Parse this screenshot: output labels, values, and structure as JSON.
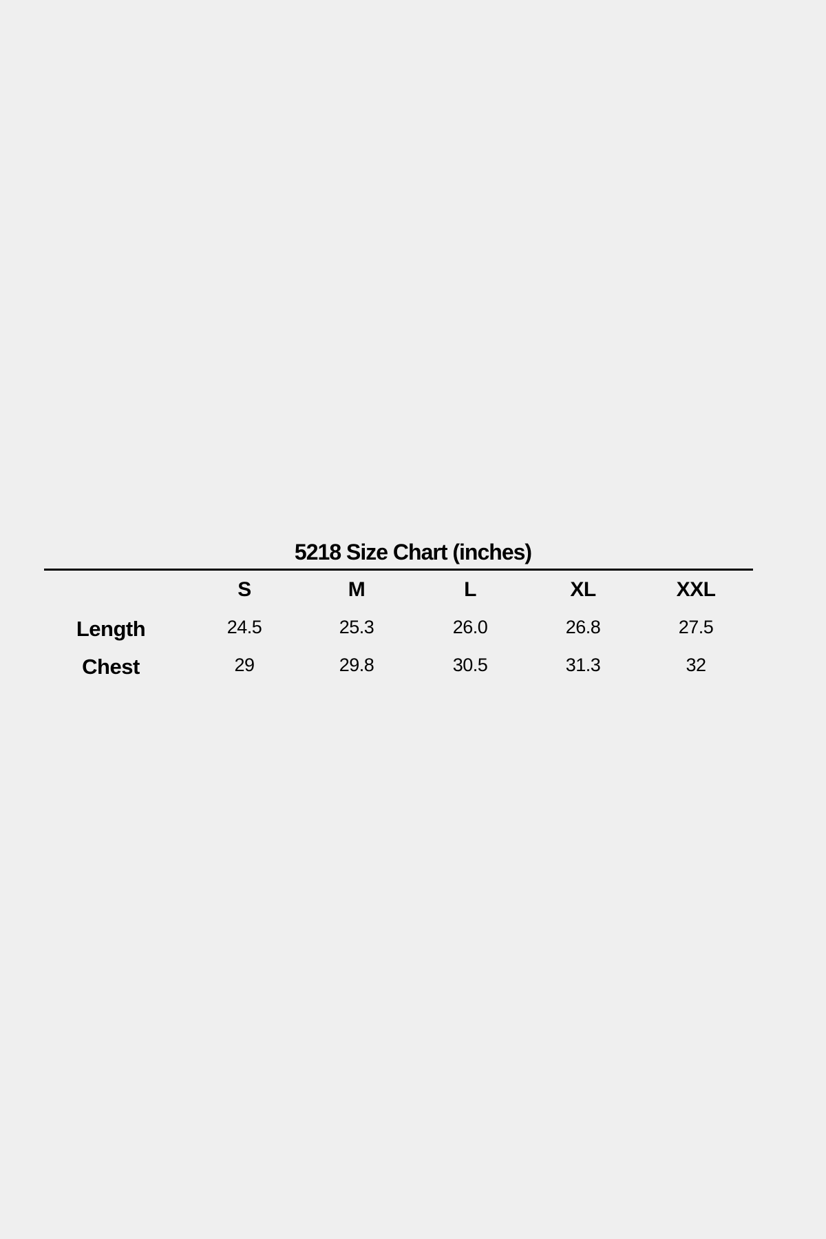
{
  "title": "5218 Size Chart (inches)",
  "columns": [
    "S",
    "M",
    "L",
    "XL",
    "XXL"
  ],
  "rows": [
    {
      "label": "Length",
      "values": [
        "24.5",
        "25.3",
        "26.0",
        "26.8",
        "27.5"
      ]
    },
    {
      "label": "Chest",
      "values": [
        "29",
        "29.8",
        "30.5",
        "31.3",
        "32"
      ]
    }
  ]
}
